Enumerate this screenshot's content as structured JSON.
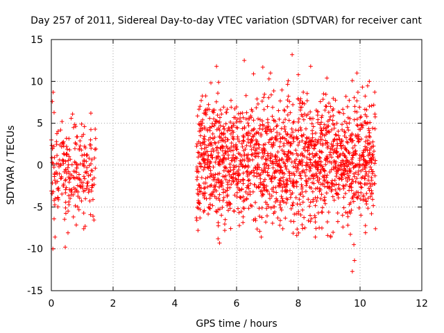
{
  "chart_data": {
    "type": "scatter",
    "title": "Day 257 of 2011, Sidereal Day-to-day VTEC variation (SDTVAR) for receiver cant",
    "xlabel": "GPS time / hours",
    "ylabel": "SDTVAR / TECUs",
    "xlim": [
      0,
      12
    ],
    "ylim": [
      -15,
      15
    ],
    "x_ticks": [
      0,
      2,
      4,
      6,
      8,
      10,
      12
    ],
    "y_ticks": [
      -15,
      -10,
      -5,
      0,
      5,
      10,
      15
    ],
    "x_tick_labels": [
      "0",
      "2",
      "4",
      "6",
      "8",
      "10",
      "12"
    ],
    "y_tick_labels": [
      "-15",
      "-10",
      "-5",
      "0",
      "5",
      "10",
      "15"
    ],
    "grid": true,
    "marker": "+",
    "color": "#ff0000",
    "series": [
      {
        "name": "SDTVAR",
        "segments": [
          {
            "x_start": 0.0,
            "x_end": 1.45,
            "count": 230,
            "sd": 2.8,
            "mean": -1.0
          },
          {
            "x_start": 4.7,
            "x_end": 10.5,
            "count": 1700,
            "sd": 3.6,
            "mean": 0.6
          }
        ],
        "points": [
          [
            0.03,
            7.6
          ],
          [
            0.06,
            8.7
          ],
          [
            0.05,
            -10.0
          ],
          [
            0.12,
            -8.6
          ],
          [
            0.45,
            -9.8
          ],
          [
            0.98,
            4.9
          ],
          [
            1.28,
            6.2
          ],
          [
            1.42,
            4.3
          ],
          [
            0.3,
            4.2
          ],
          [
            0.72,
            4.5
          ],
          [
            0.0,
            3.0
          ],
          [
            1.35,
            -6.1
          ],
          [
            1.05,
            -7.6
          ],
          [
            6.25,
            12.5
          ],
          [
            5.35,
            11.8
          ],
          [
            7.8,
            13.2
          ],
          [
            8.4,
            11.8
          ],
          [
            6.85,
            11.7
          ],
          [
            7.1,
            11.0
          ],
          [
            6.55,
            10.9
          ],
          [
            7.05,
            10.3
          ],
          [
            8.0,
            10.8
          ],
          [
            9.75,
            10.1
          ],
          [
            9.9,
            11.0
          ],
          [
            10.3,
            10.0
          ],
          [
            9.8,
            -9.5
          ],
          [
            9.82,
            -11.4
          ],
          [
            9.75,
            -12.7
          ],
          [
            5.45,
            -9.3
          ],
          [
            5.4,
            -8.8
          ],
          [
            4.75,
            -7.8
          ],
          [
            4.7,
            -6.3
          ],
          [
            6.8,
            -8.6
          ],
          [
            9.05,
            -8.6
          ],
          [
            8.95,
            -8.4
          ],
          [
            10.5,
            -7.6
          ],
          [
            8.55,
            -6.8
          ],
          [
            8.55,
            -8.6
          ],
          [
            6.75,
            -7.9
          ],
          [
            7.95,
            -8.4
          ]
        ]
      }
    ]
  }
}
